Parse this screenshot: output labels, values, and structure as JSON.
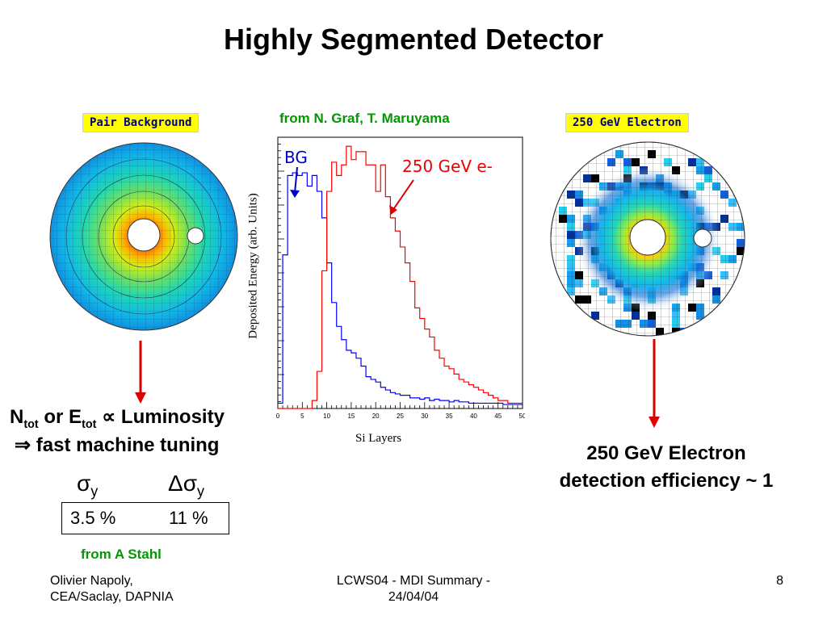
{
  "title": "Highly Segmented Detector",
  "left": {
    "label": "Pair Background",
    "lumi_N": "N",
    "lumi_N_sub": "tot",
    "lumi_or": " or E",
    "lumi_E_sub": "tot",
    "lumi_rest": " ∝ Luminosity",
    "tuning": "⇒ fast machine tuning",
    "sigma_y_head": "σ",
    "sigma_y_sub": "y",
    "dsigma_y_head": "Δσ",
    "dsigma_y_sub": "y",
    "sigma_y_value": "3.5 %",
    "dsigma_y_value": "11 %",
    "credit": "from A Stahl"
  },
  "center": {
    "credit": "from N. Graf, T. Maruyama",
    "annot_bg": "BG",
    "annot_e": "250 GeV e-"
  },
  "right": {
    "label": "250 GeV Electron",
    "result_line1": "250 GeV Electron",
    "result_line2": "detection efficiency ~ 1"
  },
  "chart_data": {
    "type": "line",
    "xlabel": "Si Layers",
    "ylabel": "Deposited Energy (arb. Units)",
    "xlim": [
      0,
      50
    ],
    "ylim": [
      0,
      1.0
    ],
    "x_ticks": [
      "0",
      "5",
      "10",
      "15",
      "20",
      "25",
      "30",
      "35",
      "40",
      "45",
      "50"
    ],
    "series": [
      {
        "name": "BG",
        "color": "#0000ff",
        "values": [
          0.02,
          0.58,
          0.88,
          0.89,
          0.88,
          0.89,
          0.84,
          0.88,
          0.82,
          0.72,
          0.55,
          0.4,
          0.31,
          0.26,
          0.22,
          0.21,
          0.19,
          0.16,
          0.12,
          0.11,
          0.1,
          0.08,
          0.07,
          0.06,
          0.055,
          0.05,
          0.05,
          0.04,
          0.04,
          0.035,
          0.04,
          0.03,
          0.035,
          0.03,
          0.03,
          0.025,
          0.03,
          0.025,
          0.025,
          0.02,
          0.02,
          0.02,
          0.02,
          0.02,
          0.02,
          0.02,
          0.015,
          0.015,
          0.015,
          0.015
        ]
      },
      {
        "name": "250 GeV e-",
        "color": "#ff0000",
        "values": [
          0.0,
          0.0,
          0.0,
          0.0,
          0.0,
          0.0,
          0.0,
          0.03,
          0.14,
          0.52,
          0.82,
          0.93,
          0.88,
          0.92,
          0.99,
          0.94,
          0.97,
          0.97,
          0.92,
          0.92,
          0.82,
          0.92,
          0.8,
          0.72,
          0.67,
          0.61,
          0.55,
          0.48,
          0.38,
          0.34,
          0.3,
          0.27,
          0.22,
          0.19,
          0.16,
          0.15,
          0.13,
          0.11,
          0.1,
          0.09,
          0.08,
          0.07,
          0.06,
          0.05,
          0.04,
          0.03,
          0.03,
          0.02,
          0.02,
          0.02
        ]
      }
    ]
  },
  "footer": {
    "author_line1": "Olivier Napoly,",
    "author_line2": "CEA/Saclay, DAPNIA",
    "conf_line1": "LCWS04 - MDI Summary -",
    "conf_line2": "24/04/04",
    "page": "8"
  },
  "colors": {
    "arrow": "#dd0000",
    "credit": "#009900",
    "label_bg": "#ffff00",
    "label_text": "#000080"
  }
}
